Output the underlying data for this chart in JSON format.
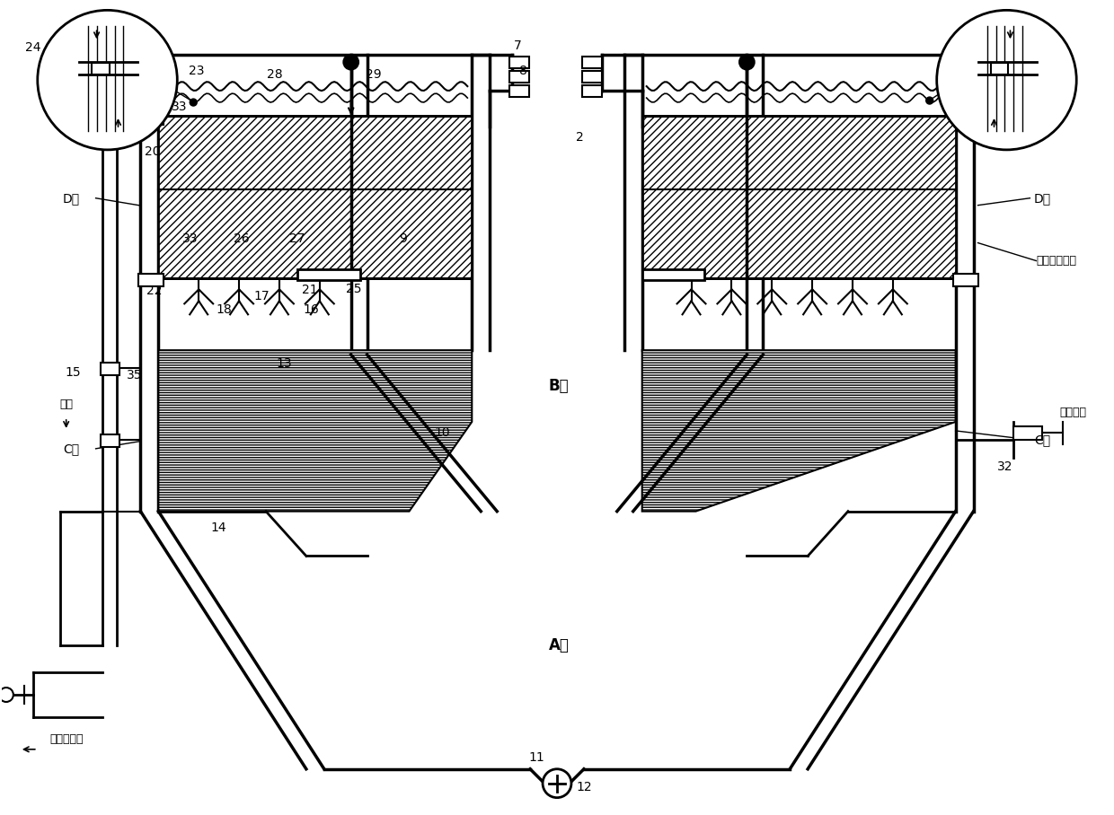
{
  "bg": "#ffffff",
  "lc": "#000000",
  "labels": {
    "A_zone": "A区",
    "B_zone": "B区",
    "C_zone": "C区",
    "D_zone": "D区",
    "func_line": "功能区划分线",
    "outlet": "出水",
    "drain_out": "接至排水槽",
    "mid_sludge": "中部排泥"
  }
}
